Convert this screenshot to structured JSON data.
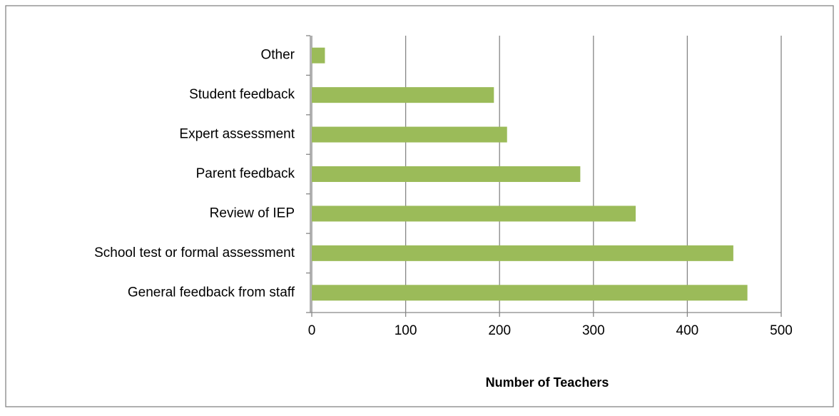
{
  "chart_data": {
    "type": "bar",
    "orientation": "horizontal",
    "x_label": "Number of Teachers",
    "categories": [
      "Other",
      "Student feedback",
      "Expert assessment",
      "Parent feedback",
      "Review of IEP",
      "School test or formal assessment",
      "General feedback from staff"
    ],
    "values": [
      14,
      194,
      208,
      286,
      345,
      449,
      464
    ],
    "color": "#9bbb59",
    "xlim": [
      0,
      500
    ],
    "xticks": [
      0,
      100,
      200,
      300,
      400,
      500
    ],
    "grid": true
  }
}
